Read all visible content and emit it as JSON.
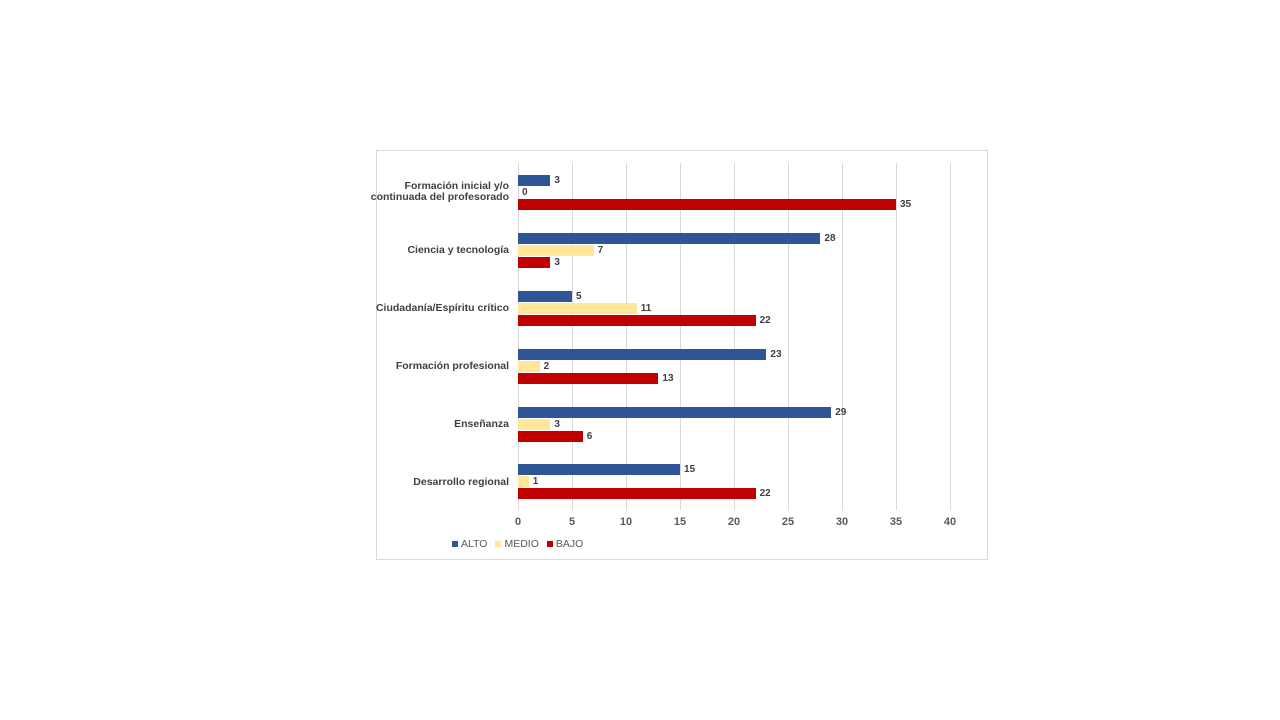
{
  "chart_data": {
    "type": "bar",
    "orientation": "horizontal",
    "title": "",
    "xlabel": "",
    "ylabel": "",
    "xlim": [
      0,
      40
    ],
    "x_ticks": [
      0,
      5,
      10,
      15,
      20,
      25,
      30,
      35,
      40
    ],
    "grid": true,
    "legend_position": "bottom-left",
    "categories": [
      "Formación inicial y/o continuada del profesorado",
      "Ciencia y tecnología",
      "Ciudadanía/Espíritu crítico",
      "Formación profesional",
      "Enseñanza",
      "Desarrollo regional"
    ],
    "series": [
      {
        "name": "ALTO",
        "color": "#2f5597",
        "values": [
          3,
          28,
          5,
          23,
          29,
          15
        ]
      },
      {
        "name": "MEDIO",
        "color": "#ffe699",
        "values": [
          0,
          7,
          11,
          2,
          3,
          1
        ]
      },
      {
        "name": "BAJO",
        "color": "#c00000",
        "values": [
          35,
          3,
          22,
          13,
          6,
          22
        ]
      }
    ]
  },
  "labels": {
    "cat0_line1": "Formación inicial y/o",
    "cat0_line2": "continuada del profesorado",
    "cat1": "Ciencia y tecnología",
    "cat2": "Ciudadanía/Espíritu crítico",
    "cat3": "Formación profesional",
    "cat4": "Enseñanza",
    "cat5": "Desarrollo regional"
  },
  "legend": {
    "alto": "ALTO",
    "medio": "MEDIO",
    "bajo": "BAJO"
  }
}
